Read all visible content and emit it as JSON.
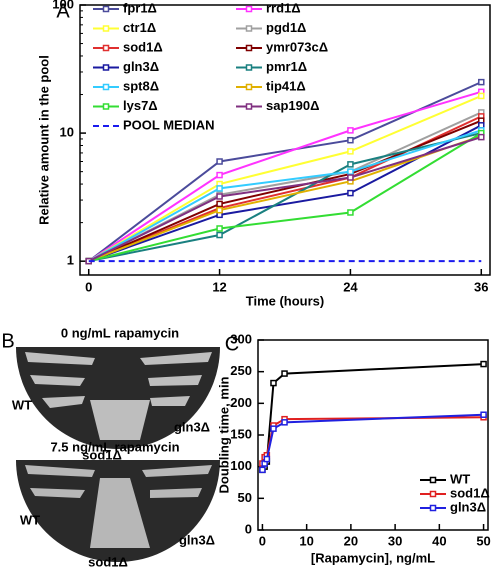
{
  "panel_labels": [
    "A",
    "B",
    "C"
  ],
  "plates": [
    {
      "title": "0 ng/mL rapamycin",
      "labels": [
        "WT",
        "sod1Δ",
        "gln3Δ"
      ]
    },
    {
      "title": "7.5 ng/mL rapamycin",
      "labels": [
        "WT",
        "sod1Δ",
        "gln3Δ"
      ]
    }
  ],
  "chart_data": [
    {
      "type": "line",
      "x_label": "Time (hours)",
      "y_label": "Relative amount in the pool",
      "yscale": "log",
      "marker": "square",
      "legend": "upper left",
      "x": [
        0,
        12,
        24,
        36
      ],
      "xlim": [
        -0.8,
        36.8
      ],
      "xticks": [
        0,
        12,
        24,
        36
      ],
      "ylim": [
        0.78,
        100
      ],
      "yticks": [
        1,
        10,
        100
      ],
      "series": [
        {
          "name": "fpr1Δ",
          "color": "#4b4b9b",
          "values": [
            1,
            6.0,
            8.8,
            25
          ]
        },
        {
          "name": "rrd1Δ",
          "color": "#ff33ff",
          "values": [
            1,
            4.7,
            10.5,
            21
          ]
        },
        {
          "name": "ctr1Δ",
          "color": "#ffff33",
          "values": [
            1,
            4.0,
            7.2,
            19.5
          ]
        },
        {
          "name": "pgd1Δ",
          "color": "#a0a0a0",
          "values": [
            1,
            3.3,
            5.0,
            14.5
          ]
        },
        {
          "name": "sod1Δ",
          "color": "#e03030",
          "values": [
            1,
            2.6,
            4.5,
            13.5
          ]
        },
        {
          "name": "ymr073cΔ",
          "color": "#800000",
          "values": [
            1,
            2.8,
            4.8,
            12.5
          ]
        },
        {
          "name": "gln3Δ",
          "color": "#1a1aa0",
          "values": [
            1,
            2.3,
            3.4,
            11.5
          ]
        },
        {
          "name": "pmr1Δ",
          "color": "#1a8080",
          "values": [
            1,
            1.6,
            5.7,
            10
          ]
        },
        {
          "name": "spt8Δ",
          "color": "#33ccff",
          "values": [
            1,
            3.7,
            5.0,
            10.5
          ]
        },
        {
          "name": "tip41Δ",
          "color": "#e0b000",
          "values": [
            1,
            2.5,
            4.2,
            9.5
          ]
        },
        {
          "name": "lys7Δ",
          "color": "#33dd33",
          "values": [
            1,
            1.8,
            2.4,
            10
          ]
        },
        {
          "name": "sap190Δ",
          "color": "#803080",
          "values": [
            1,
            3.2,
            4.5,
            9.3
          ]
        },
        {
          "name": "POOL MEDIAN",
          "color": "#1a1aee",
          "linestyle": "dashed",
          "values": [
            1,
            1,
            1,
            1
          ]
        }
      ]
    },
    {
      "type": "line",
      "x_label": "[Rapamycin], ng/mL",
      "y_label": "Doubling time, min",
      "marker": "square",
      "legend": "lower right",
      "x": [
        0,
        0.5,
        1,
        2.5,
        5,
        50
      ],
      "xlim": [
        -1,
        51
      ],
      "xticks": [
        0,
        10,
        20,
        30,
        40,
        50
      ],
      "ylim": [
        0,
        300
      ],
      "yticks": [
        0,
        50,
        100,
        150,
        200,
        250,
        300
      ],
      "series": [
        {
          "name": "WT",
          "color": "#000000",
          "values": [
            95,
            100,
            108,
            232,
            247,
            262
          ]
        },
        {
          "name": "sod1Δ",
          "color": "#e02020",
          "values": [
            105,
            115,
            118,
            165,
            175,
            178
          ]
        },
        {
          "name": "gln3Δ",
          "color": "#2020e0",
          "values": [
            95,
            105,
            112,
            160,
            170,
            182
          ]
        }
      ]
    }
  ]
}
